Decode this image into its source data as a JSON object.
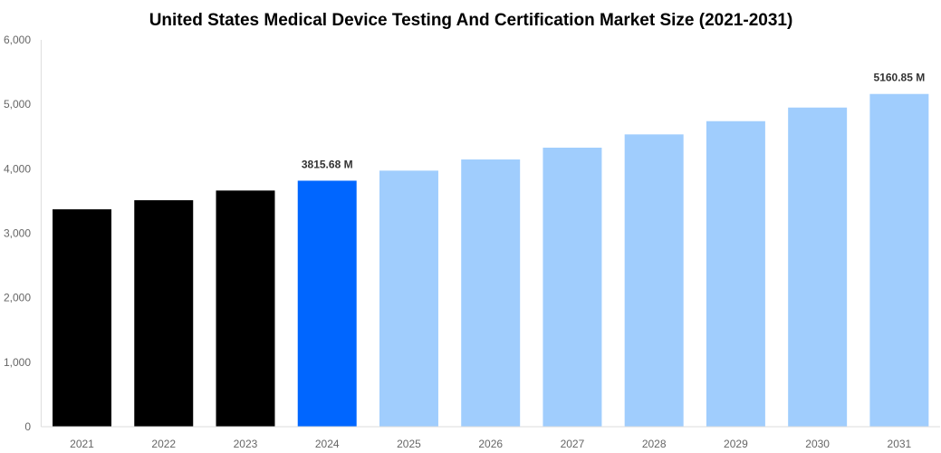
{
  "chart_data": {
    "type": "bar",
    "title": "United States Medical Device Testing And Certification Market Size (2021-2031)",
    "xlabel": "",
    "ylabel": "",
    "categories": [
      "2021",
      "2022",
      "2023",
      "2024",
      "2025",
      "2026",
      "2027",
      "2028",
      "2029",
      "2030",
      "2031"
    ],
    "values": [
      3372,
      3513,
      3663,
      3815.68,
      3972,
      4145,
      4328,
      4534,
      4739,
      4950,
      5160.85
    ],
    "bar_colors": [
      "#000000",
      "#000000",
      "#000000",
      "#0066ff",
      "#a0cdfd",
      "#a0cdfd",
      "#a0cdfd",
      "#a0cdfd",
      "#a0cdfd",
      "#a0cdfd",
      "#a0cdfd"
    ],
    "data_labels": {
      "3": "3815.68 M",
      "10": "5160.85 M"
    },
    "ylim": [
      0,
      6000
    ],
    "yticks": [
      0,
      1000,
      2000,
      3000,
      4000,
      5000,
      6000
    ],
    "ytick_labels": [
      "0",
      "1,000",
      "2,000",
      "3,000",
      "4,000",
      "5,000",
      "6,000"
    ],
    "grid": false,
    "legend": "none"
  }
}
